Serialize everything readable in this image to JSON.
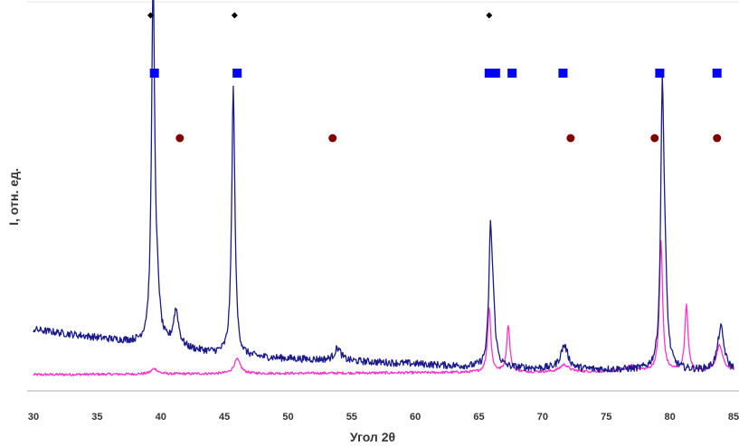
{
  "chart_data": {
    "type": "line",
    "title": "",
    "xlabel": "Угол 2θ",
    "ylabel": "I, отн. ед.",
    "xlim": [
      30,
      85
    ],
    "ylim": [
      0,
      100
    ],
    "xticks": [
      30,
      35,
      40,
      45,
      50,
      55,
      60,
      65,
      70,
      75,
      80,
      85
    ],
    "xtick_labels": [
      "30",
      "35",
      "40",
      "45",
      "50",
      "55",
      "60",
      "65",
      "70",
      "75",
      "80",
      "85"
    ],
    "grid": false,
    "legend": "none",
    "series": [
      {
        "color": "#1a1a8c",
        "baseline": [
          [
            30,
            17
          ],
          [
            38.7,
            13
          ],
          [
            39.0,
            13
          ],
          [
            45.0,
            10
          ],
          [
            46.0,
            9.5
          ],
          [
            60,
            7.5
          ],
          [
            65,
            6.5
          ],
          [
            72,
            6
          ],
          [
            85,
            5.5
          ]
        ],
        "peaks": [
          {
            "x": 39.4,
            "y": 100,
            "w": 0.15
          },
          {
            "x": 39.75,
            "y": 10,
            "w": 0.2
          },
          {
            "x": 41.2,
            "y": 10,
            "w": 0.25
          },
          {
            "x": 45.7,
            "y": 74,
            "w": 0.15
          },
          {
            "x": 53.9,
            "y": 3.5,
            "w": 0.3
          },
          {
            "x": 65.9,
            "y": 33,
            "w": 0.15
          },
          {
            "x": 66.1,
            "y": 14,
            "w": 0.2
          },
          {
            "x": 71.7,
            "y": 6.5,
            "w": 0.35
          },
          {
            "x": 79.4,
            "y": 71,
            "w": 0.15
          },
          {
            "x": 79.6,
            "y": 20,
            "w": 0.2
          },
          {
            "x": 84.0,
            "y": 12,
            "w": 0.3
          }
        ],
        "noise": 1.0
      },
      {
        "color": "#ff33cc",
        "baseline": [
          [
            30,
            4.5
          ],
          [
            85,
            5.5
          ]
        ],
        "peaks": [
          {
            "x": 39.5,
            "y": 1.5,
            "w": 0.3
          },
          {
            "x": 46.0,
            "y": 4,
            "w": 0.3
          },
          {
            "x": 65.8,
            "y": 18,
            "w": 0.15
          },
          {
            "x": 67.3,
            "y": 13,
            "w": 0.15
          },
          {
            "x": 71.7,
            "y": 2,
            "w": 0.4
          },
          {
            "x": 77.0,
            "y": 1.5,
            "w": 0.5
          },
          {
            "x": 79.3,
            "y": 36,
            "w": 0.15
          },
          {
            "x": 81.3,
            "y": 18,
            "w": 0.15
          },
          {
            "x": 83.9,
            "y": 7,
            "w": 0.3
          }
        ],
        "noise": 0.35
      }
    ],
    "markers": [
      {
        "shape": "diamond",
        "color": "#000000",
        "y": 104,
        "x": [
          39.2,
          45.8,
          65.8
        ]
      },
      {
        "shape": "square",
        "color": "#0000ff",
        "y": 88,
        "x": [
          39.5,
          46.0,
          65.8,
          66.3,
          67.6,
          71.6,
          79.2,
          83.7
        ]
      },
      {
        "shape": "circle",
        "color": "#800000",
        "y": 70,
        "x": [
          41.5,
          53.5,
          72.2,
          78.8,
          83.7
        ]
      }
    ]
  }
}
